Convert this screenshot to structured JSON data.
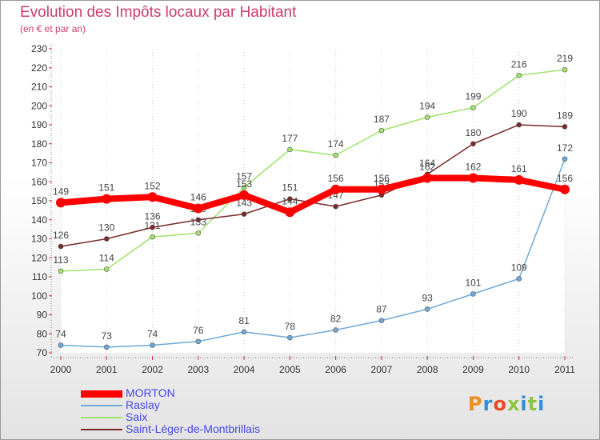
{
  "header": {
    "title": "Evolution des Impôts locaux par Habitant",
    "subtitle": "(en € et par an)"
  },
  "logo": {
    "text": "Proxiti",
    "colors": [
      "#f08c1c",
      "#2f8fd6",
      "#e84c28",
      "#8cc63f",
      "#2f8fd6",
      "#8cc63f",
      "#2f8fd6"
    ]
  },
  "chart_data": {
    "type": "line",
    "title": "Evolution des Impôts locaux par Habitant",
    "subtitle": "(en € et par an)",
    "xlabel": "",
    "ylabel": "",
    "categories": [
      "2000",
      "2001",
      "2002",
      "2003",
      "2004",
      "2005",
      "2006",
      "2007",
      "2008",
      "2009",
      "2010",
      "2011"
    ],
    "ylim": [
      70,
      230
    ],
    "ytick_step": 10,
    "grid": "vertical dotted lines",
    "legend_position": "bottom-left",
    "series": [
      {
        "name": "MORTON",
        "color": "#ff0000",
        "values": [
          149,
          151,
          152,
          146,
          153,
          144,
          156,
          156,
          162,
          162,
          161,
          156
        ]
      },
      {
        "name": "Raslay",
        "color": "#6fa8d6",
        "values": [
          74,
          73,
          74,
          76,
          81,
          78,
          82,
          87,
          93,
          101,
          109,
          172
        ]
      },
      {
        "name": "Saix",
        "color": "#9fe36a",
        "values": [
          113,
          114,
          131,
          133,
          157,
          177,
          174,
          187,
          194,
          199,
          216,
          219
        ]
      },
      {
        "name": "Saint-Léger-de-Montbrillais",
        "color": "#7a2a2a",
        "values": [
          126,
          130,
          136,
          140,
          143,
          151,
          147,
          153,
          164,
          180,
          190,
          189
        ]
      }
    ]
  }
}
